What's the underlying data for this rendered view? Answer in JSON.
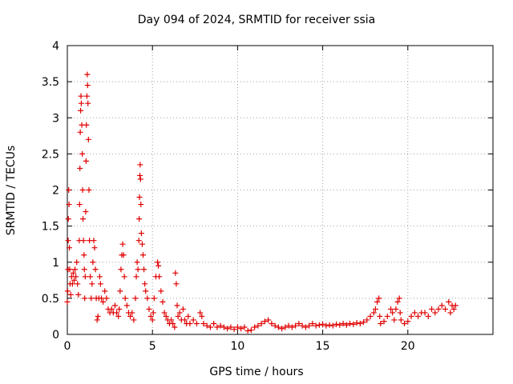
{
  "chart_data": {
    "type": "scatter",
    "title": "Day 094 of 2024, SRMTID for receiver ssia",
    "xlabel": "GPS time / hours",
    "ylabel": "SRMTID / TECUs",
    "xlim": [
      0,
      25
    ],
    "ylim": [
      0,
      4
    ],
    "xticks": [
      0,
      5,
      10,
      15,
      20
    ],
    "yticks": [
      0,
      0.5,
      1,
      1.5,
      2,
      2.5,
      3,
      3.5,
      4
    ],
    "xtick_labels": [
      "0",
      "5",
      "10",
      "15",
      "20"
    ],
    "ytick_labels": [
      "0",
      "0.5",
      "1",
      "1.5",
      "2",
      "2.5",
      "3",
      "3.5",
      "4"
    ],
    "grid": true,
    "marker": "+",
    "color": "#e00000",
    "series": [
      {
        "name": "SRMTID",
        "points": [
          [
            0.0,
            0.45
          ],
          [
            0.02,
            0.6
          ],
          [
            0.04,
            0.9
          ],
          [
            0.05,
            1.3
          ],
          [
            0.06,
            1.6
          ],
          [
            0.08,
            2.0
          ],
          [
            0.1,
            1.8
          ],
          [
            0.12,
            1.2
          ],
          [
            0.14,
            0.9
          ],
          [
            0.16,
            0.7
          ],
          [
            0.2,
            0.55
          ],
          [
            0.25,
            0.8
          ],
          [
            0.3,
            0.7
          ],
          [
            0.35,
            0.85
          ],
          [
            0.4,
            0.75
          ],
          [
            0.45,
            0.9
          ],
          [
            0.5,
            0.8
          ],
          [
            0.55,
            1.0
          ],
          [
            0.6,
            0.7
          ],
          [
            0.65,
            0.55
          ],
          [
            0.7,
            1.3
          ],
          [
            0.72,
            1.8
          ],
          [
            0.74,
            2.3
          ],
          [
            0.76,
            2.8
          ],
          [
            0.78,
            3.1
          ],
          [
            0.8,
            3.3
          ],
          [
            0.82,
            3.2
          ],
          [
            0.85,
            2.9
          ],
          [
            0.88,
            2.5
          ],
          [
            0.9,
            2.0
          ],
          [
            0.92,
            1.6
          ],
          [
            0.95,
            1.3
          ],
          [
            0.98,
            1.1
          ],
          [
            1.0,
            0.9
          ],
          [
            1.02,
            0.5
          ],
          [
            1.05,
            0.8
          ],
          [
            1.08,
            1.7
          ],
          [
            1.1,
            2.4
          ],
          [
            1.12,
            2.9
          ],
          [
            1.15,
            3.3
          ],
          [
            1.17,
            3.6
          ],
          [
            1.19,
            3.45
          ],
          [
            1.21,
            3.2
          ],
          [
            1.24,
            2.7
          ],
          [
            1.27,
            2.0
          ],
          [
            1.3,
            1.3
          ],
          [
            1.35,
            0.8
          ],
          [
            1.4,
            0.5
          ],
          [
            1.45,
            0.7
          ],
          [
            1.5,
            1.0
          ],
          [
            1.55,
            1.3
          ],
          [
            1.6,
            1.2
          ],
          [
            1.65,
            0.9
          ],
          [
            1.7,
            0.5
          ],
          [
            1.75,
            0.2
          ],
          [
            1.8,
            0.25
          ],
          [
            1.85,
            0.5
          ],
          [
            1.9,
            0.8
          ],
          [
            1.95,
            0.7
          ],
          [
            2.0,
            0.5
          ],
          [
            2.1,
            0.45
          ],
          [
            2.2,
            0.6
          ],
          [
            2.3,
            0.5
          ],
          [
            2.4,
            0.35
          ],
          [
            2.5,
            0.3
          ],
          [
            2.6,
            0.35
          ],
          [
            2.7,
            0.3
          ],
          [
            2.8,
            0.4
          ],
          [
            2.9,
            0.3
          ],
          [
            3.0,
            0.25
          ],
          [
            3.05,
            0.35
          ],
          [
            3.1,
            0.6
          ],
          [
            3.15,
            0.9
          ],
          [
            3.2,
            1.1
          ],
          [
            3.25,
            1.25
          ],
          [
            3.3,
            1.1
          ],
          [
            3.35,
            0.8
          ],
          [
            3.4,
            0.5
          ],
          [
            3.5,
            0.4
          ],
          [
            3.6,
            0.3
          ],
          [
            3.7,
            0.25
          ],
          [
            3.8,
            0.3
          ],
          [
            3.9,
            0.2
          ],
          [
            4.0,
            0.5
          ],
          [
            4.05,
            0.8
          ],
          [
            4.1,
            1.0
          ],
          [
            4.15,
            0.9
          ],
          [
            4.2,
            1.3
          ],
          [
            4.22,
            1.6
          ],
          [
            4.24,
            1.9
          ],
          [
            4.26,
            2.2
          ],
          [
            4.28,
            2.35
          ],
          [
            4.3,
            2.15
          ],
          [
            4.32,
            1.8
          ],
          [
            4.35,
            1.4
          ],
          [
            4.4,
            1.25
          ],
          [
            4.45,
            1.1
          ],
          [
            4.5,
            0.9
          ],
          [
            4.55,
            0.7
          ],
          [
            4.6,
            0.6
          ],
          [
            4.7,
            0.5
          ],
          [
            4.8,
            0.35
          ],
          [
            4.9,
            0.25
          ],
          [
            5.0,
            0.2
          ],
          [
            5.05,
            0.3
          ],
          [
            5.1,
            0.5
          ],
          [
            5.2,
            0.8
          ],
          [
            5.3,
            1.0
          ],
          [
            5.35,
            0.95
          ],
          [
            5.4,
            0.8
          ],
          [
            5.5,
            0.6
          ],
          [
            5.6,
            0.45
          ],
          [
            5.7,
            0.3
          ],
          [
            5.8,
            0.25
          ],
          [
            5.9,
            0.2
          ],
          [
            6.0,
            0.15
          ],
          [
            6.1,
            0.2
          ],
          [
            6.2,
            0.15
          ],
          [
            6.3,
            0.1
          ],
          [
            6.35,
            0.85
          ],
          [
            6.4,
            0.7
          ],
          [
            6.45,
            0.4
          ],
          [
            6.5,
            0.25
          ],
          [
            6.6,
            0.3
          ],
          [
            6.7,
            0.2
          ],
          [
            6.8,
            0.35
          ],
          [
            6.9,
            0.2
          ],
          [
            7.0,
            0.15
          ],
          [
            7.1,
            0.25
          ],
          [
            7.2,
            0.15
          ],
          [
            7.4,
            0.2
          ],
          [
            7.6,
            0.15
          ],
          [
            7.8,
            0.3
          ],
          [
            7.9,
            0.25
          ],
          [
            8.0,
            0.15
          ],
          [
            8.2,
            0.12
          ],
          [
            8.4,
            0.1
          ],
          [
            8.6,
            0.15
          ],
          [
            8.8,
            0.1
          ],
          [
            9.0,
            0.12
          ],
          [
            9.2,
            0.1
          ],
          [
            9.4,
            0.08
          ],
          [
            9.6,
            0.1
          ],
          [
            9.8,
            0.07
          ],
          [
            10.0,
            0.1
          ],
          [
            10.2,
            0.08
          ],
          [
            10.4,
            0.1
          ],
          [
            10.6,
            0.05
          ],
          [
            10.8,
            0.06
          ],
          [
            11.0,
            0.1
          ],
          [
            11.2,
            0.12
          ],
          [
            11.4,
            0.15
          ],
          [
            11.6,
            0.18
          ],
          [
            11.8,
            0.2
          ],
          [
            12.0,
            0.15
          ],
          [
            12.2,
            0.12
          ],
          [
            12.4,
            0.1
          ],
          [
            12.6,
            0.08
          ],
          [
            12.8,
            0.1
          ],
          [
            13.0,
            0.12
          ],
          [
            13.2,
            0.1
          ],
          [
            13.4,
            0.12
          ],
          [
            13.6,
            0.15
          ],
          [
            13.8,
            0.12
          ],
          [
            14.0,
            0.1
          ],
          [
            14.2,
            0.12
          ],
          [
            14.4,
            0.15
          ],
          [
            14.6,
            0.12
          ],
          [
            14.8,
            0.13
          ],
          [
            15.0,
            0.14
          ],
          [
            15.2,
            0.12
          ],
          [
            15.4,
            0.13
          ],
          [
            15.6,
            0.12
          ],
          [
            15.8,
            0.14
          ],
          [
            16.0,
            0.13
          ],
          [
            16.2,
            0.15
          ],
          [
            16.4,
            0.13
          ],
          [
            16.6,
            0.15
          ],
          [
            16.8,
            0.14
          ],
          [
            17.0,
            0.16
          ],
          [
            17.2,
            0.15
          ],
          [
            17.4,
            0.17
          ],
          [
            17.6,
            0.2
          ],
          [
            17.8,
            0.25
          ],
          [
            18.0,
            0.3
          ],
          [
            18.1,
            0.35
          ],
          [
            18.2,
            0.45
          ],
          [
            18.3,
            0.5
          ],
          [
            18.35,
            0.25
          ],
          [
            18.4,
            0.15
          ],
          [
            18.6,
            0.18
          ],
          [
            18.8,
            0.25
          ],
          [
            19.0,
            0.35
          ],
          [
            19.1,
            0.3
          ],
          [
            19.2,
            0.2
          ],
          [
            19.3,
            0.35
          ],
          [
            19.4,
            0.45
          ],
          [
            19.5,
            0.5
          ],
          [
            19.55,
            0.3
          ],
          [
            19.6,
            0.2
          ],
          [
            19.8,
            0.15
          ],
          [
            20.0,
            0.18
          ],
          [
            20.2,
            0.25
          ],
          [
            20.4,
            0.3
          ],
          [
            20.6,
            0.25
          ],
          [
            20.8,
            0.3
          ],
          [
            21.0,
            0.3
          ],
          [
            21.2,
            0.25
          ],
          [
            21.4,
            0.35
          ],
          [
            21.6,
            0.3
          ],
          [
            21.8,
            0.35
          ],
          [
            22.0,
            0.4
          ],
          [
            22.2,
            0.35
          ],
          [
            22.4,
            0.45
          ],
          [
            22.5,
            0.3
          ],
          [
            22.6,
            0.4
          ],
          [
            22.7,
            0.35
          ],
          [
            22.8,
            0.4
          ]
        ]
      }
    ]
  }
}
